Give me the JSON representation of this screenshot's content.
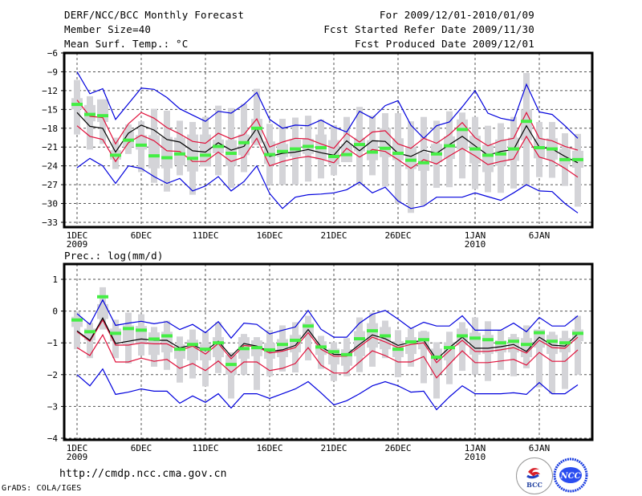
{
  "header": {
    "title": "DERF/NCC/BCC Monthly Forecast",
    "member_size": "Member Size=40",
    "variable": "Mean Surf. Temp.: °C",
    "period": "For 2009/12/01-2010/01/09",
    "started": "Fcst Started Refer Date 2009/11/30",
    "produced": "Fcst Produced Date 2009/12/01"
  },
  "footer": {
    "url": "http://cmdp.ncc.cma.gov.cn",
    "credit": "GrADS: COLA/IGES",
    "logos": [
      "BCC",
      "NCC"
    ]
  },
  "colors": {
    "mean": "#000000",
    "inner": "#e0103a",
    "outer": "#0000dd",
    "member_box": "#d4d4d8",
    "median_mark": "#44ee44"
  },
  "chart_data": [
    {
      "type": "line",
      "title": "Mean Surf. Temp.: °C",
      "ylabel": "°C",
      "ylim": [
        -34,
        -6
      ],
      "yticks": [
        -6,
        -9,
        -12,
        -15,
        -18,
        -21,
        -24,
        -27,
        -30,
        -33
      ],
      "xticks": [
        {
          "day": 1,
          "label": "1DEC",
          "sub": "2009"
        },
        {
          "day": 6,
          "label": "6DEC"
        },
        {
          "day": 11,
          "label": "11DEC"
        },
        {
          "day": 16,
          "label": "16DEC"
        },
        {
          "day": 21,
          "label": "21DEC"
        },
        {
          "day": 26,
          "label": "26DEC"
        },
        {
          "day": 32,
          "label": "1JAN",
          "sub": "2010"
        },
        {
          "day": 37,
          "label": "6JAN"
        }
      ],
      "grid": true,
      "days": 40,
      "series": [
        {
          "name": "ensemble-mean",
          "values": [
            -15.5,
            -17.7,
            -18.0,
            -21.8,
            -18.8,
            -17.5,
            -18.3,
            -19.8,
            -20.2,
            -21.6,
            -21.8,
            -20.3,
            -21.5,
            -20.9,
            -18.0,
            -22.5,
            -22.0,
            -21.8,
            -21.4,
            -21.9,
            -22.3,
            -20.0,
            -21.6,
            -20.0,
            -20.1,
            -22.0,
            -22.5,
            -21.5,
            -22.0,
            -20.6,
            -19.3,
            -20.8,
            -22.3,
            -21.7,
            -21.4,
            -17.6,
            -21.0,
            -21.3,
            -22.5,
            -23.5
          ]
        },
        {
          "name": "upper-inner",
          "values": [
            -13.5,
            -16.1,
            -16.3,
            -20.5,
            -17.3,
            -15.5,
            -16.4,
            -17.9,
            -18.9,
            -20.1,
            -20.4,
            -18.8,
            -19.7,
            -19.0,
            -16.5,
            -21.0,
            -20.2,
            -19.6,
            -19.7,
            -20.5,
            -21.2,
            -18.8,
            -20.2,
            -18.6,
            -18.4,
            -20.5,
            -21.2,
            -19.6,
            -20.4,
            -19.0,
            -17.1,
            -19.5,
            -20.8,
            -20.0,
            -19.6,
            -15.5,
            -19.6,
            -20.0,
            -20.9,
            -21.5
          ]
        },
        {
          "name": "lower-inner",
          "values": [
            -17.6,
            -19.3,
            -19.8,
            -23.3,
            -20.3,
            -19.1,
            -20.0,
            -21.6,
            -21.7,
            -23.3,
            -23.3,
            -21.8,
            -23.3,
            -22.6,
            -19.6,
            -24.0,
            -23.3,
            -22.8,
            -22.5,
            -22.9,
            -23.5,
            -21.2,
            -22.6,
            -21.4,
            -21.7,
            -23.0,
            -24.4,
            -23.0,
            -23.7,
            -22.4,
            -21.2,
            -22.4,
            -23.8,
            -23.3,
            -22.9,
            -19.3,
            -22.6,
            -23.2,
            -24.4,
            -25.8
          ]
        },
        {
          "name": "upper-outer",
          "values": [
            -9.0,
            -12.5,
            -11.7,
            -16.6,
            -14.1,
            -11.6,
            -11.8,
            -13.1,
            -14.9,
            -15.9,
            -16.9,
            -15.3,
            -15.6,
            -14.2,
            -12.3,
            -16.6,
            -18.0,
            -17.5,
            -17.6,
            -16.7,
            -17.8,
            -18.6,
            -15.3,
            -16.4,
            -14.4,
            -13.6,
            -17.5,
            -19.6,
            -17.6,
            -17.0,
            -14.6,
            -12.0,
            -15.6,
            -16.4,
            -16.8,
            -11.0,
            -15.4,
            -15.8,
            -17.6,
            -19.6
          ]
        },
        {
          "name": "lower-outer",
          "values": [
            -24.3,
            -22.8,
            -24.0,
            -26.8,
            -24.0,
            -24.4,
            -25.7,
            -26.8,
            -26.0,
            -28.0,
            -27.2,
            -25.7,
            -28.0,
            -26.5,
            -24.0,
            -28.4,
            -30.8,
            -29.0,
            -28.6,
            -28.5,
            -28.3,
            -27.8,
            -26.6,
            -28.3,
            -27.4,
            -29.6,
            -30.8,
            -30.4,
            -29.0,
            -29.0,
            -29.0,
            -28.3,
            -28.9,
            -29.5,
            -28.3,
            -27.0,
            -28.0,
            -28.1,
            -30.0,
            -31.5
          ]
        },
        {
          "name": "member-median",
          "values": [
            -14.2,
            -15.8,
            -16.0,
            -22.3,
            -19.9,
            -20.7,
            -22.4,
            -22.7,
            -22.1,
            -22.8,
            -22.3,
            -20.9,
            -22.0,
            -20.3,
            -18.0,
            -22.2,
            -21.7,
            -21.3,
            -20.9,
            -21.1,
            -22.5,
            -22.2,
            -20.6,
            -21.8,
            -21.2,
            -22.0,
            -23.1,
            -23.5,
            -22.1,
            -20.8,
            -18.2,
            -21.3,
            -22.3,
            -22.1,
            -21.3,
            -16.9,
            -21.1,
            -21.3,
            -23.0,
            -23.0
          ]
        },
        {
          "name": "box-top",
          "values": [
            -10.3,
            -12.9,
            -13.4,
            -19.5,
            -17.4,
            -16.9,
            -14.9,
            -15.2,
            -16.8,
            -17.0,
            -16.2,
            -14.4,
            -14.8,
            -14.1,
            -11.7,
            -17.3,
            -16.5,
            -16.3,
            -16.0,
            -16.6,
            -17.5,
            -16.2,
            -14.6,
            -16.0,
            -15.6,
            -15.6,
            -16.9,
            -16.2,
            -16.8,
            -15.3,
            -15.5,
            -16.2,
            -17.6,
            -17.2,
            -16.2,
            -9.2,
            -17.0,
            -17.0,
            -18.8,
            -18.9
          ]
        },
        {
          "name": "box-bottom",
          "values": [
            -19.0,
            -21.4,
            -20.5,
            -24.5,
            -22.1,
            -25.0,
            -26.7,
            -28.1,
            -25.5,
            -28.6,
            -24.0,
            -25.5,
            -27.5,
            -25.0,
            -20.7,
            -27.0,
            -27.0,
            -27.0,
            -26.5,
            -26.0,
            -25.5,
            -22.7,
            -27.0,
            -25.5,
            -27.3,
            -30.0,
            -31.5,
            -30.3,
            -27.5,
            -27.4,
            -26.0,
            -27.7,
            -28.2,
            -28.3,
            -27.6,
            -27.2,
            -25.8,
            -25.9,
            -27.2,
            -30.5
          ]
        },
        {
          "name": "box-q3",
          "values": [
            -13.2,
            -14.3,
            -13.4,
            -21.5,
            -18.5,
            -19.1,
            -19.1,
            -19.4,
            -19.5,
            -19.0,
            -19.0,
            -19.8,
            -19.9,
            -19.0,
            -16.5,
            -20.1,
            -20.5,
            -19.8,
            -19.7,
            -19.0,
            -19.9,
            -20.5,
            -19.5,
            -19.9,
            -18.0,
            -19.6,
            -21.0,
            -22.0,
            -20.5,
            -19.3,
            -16.6,
            -19.2,
            -20.7,
            -19.8,
            -19.5,
            -15.0,
            -19.7,
            -19.6,
            -21.3,
            -21.6
          ]
        },
        {
          "name": "box-q1",
          "values": [
            -15.0,
            -16.9,
            -17.0,
            -23.0,
            -21.0,
            -21.4,
            -24.4,
            -24.4,
            -23.9,
            -24.9,
            -24.1,
            -22.0,
            -24.0,
            -22.3,
            -20.4,
            -23.7,
            -22.6,
            -22.5,
            -22.1,
            -23.0,
            -23.8,
            -23.4,
            -21.7,
            -23.1,
            -22.6,
            -23.1,
            -24.5,
            -24.8,
            -23.4,
            -22.9,
            -21.4,
            -23.6,
            -25.0,
            -24.0,
            -23.2,
            -19.9,
            -22.8,
            -23.0,
            -23.8,
            -24.3
          ]
        }
      ]
    },
    {
      "type": "line",
      "title": "Prec.: log(mm/d)",
      "ylabel": "log(mm/d)",
      "ylim": [
        -4,
        1.5
      ],
      "yticks": [
        1,
        0,
        -1,
        -2,
        -3,
        -4
      ],
      "xticks": [
        {
          "day": 1,
          "label": "1DEC",
          "sub": "2009"
        },
        {
          "day": 6,
          "label": "6DEC"
        },
        {
          "day": 11,
          "label": "11DEC"
        },
        {
          "day": 16,
          "label": "16DEC"
        },
        {
          "day": 21,
          "label": "21DEC"
        },
        {
          "day": 26,
          "label": "26DEC"
        },
        {
          "day": 32,
          "label": "1JAN",
          "sub": "2010"
        },
        {
          "day": 37,
          "label": "6JAN"
        }
      ],
      "grid": true,
      "days": 40,
      "series": [
        {
          "name": "ensemble-mean",
          "values": [
            -0.62,
            -0.92,
            -0.22,
            -1.02,
            -0.95,
            -0.88,
            -0.92,
            -0.92,
            -1.16,
            -1.06,
            -1.25,
            -0.95,
            -1.42,
            -1.02,
            -1.1,
            -1.27,
            -1.22,
            -1.08,
            -0.58,
            -1.12,
            -1.36,
            -1.37,
            -1.05,
            -0.75,
            -0.87,
            -1.08,
            -0.98,
            -0.92,
            -1.52,
            -1.15,
            -0.82,
            -1.17,
            -1.17,
            -1.12,
            -1.05,
            -1.27,
            -0.82,
            -1.07,
            -1.1,
            -0.72
          ]
        },
        {
          "name": "upper-inner",
          "values": [
            -0.65,
            -0.95,
            -0.28,
            -1.07,
            -1.07,
            -1.0,
            -1.03,
            -1.03,
            -1.24,
            -1.1,
            -1.35,
            -1.02,
            -1.5,
            -1.08,
            -1.12,
            -1.32,
            -1.26,
            -1.15,
            -0.68,
            -1.2,
            -1.42,
            -1.42,
            -1.12,
            -0.82,
            -0.97,
            -1.15,
            -1.05,
            -1.0,
            -1.62,
            -1.25,
            -0.92,
            -1.27,
            -1.27,
            -1.22,
            -1.15,
            -1.32,
            -0.92,
            -1.15,
            -1.17,
            -0.82
          ]
        },
        {
          "name": "lower-inner",
          "values": [
            -1.15,
            -1.4,
            -0.75,
            -1.6,
            -1.6,
            -1.48,
            -1.58,
            -1.52,
            -1.8,
            -1.65,
            -1.87,
            -1.57,
            -1.93,
            -1.6,
            -1.6,
            -1.87,
            -1.8,
            -1.65,
            -1.15,
            -1.7,
            -1.95,
            -1.95,
            -1.6,
            -1.25,
            -1.4,
            -1.6,
            -1.6,
            -1.43,
            -2.1,
            -1.67,
            -1.25,
            -1.62,
            -1.62,
            -1.57,
            -1.52,
            -1.7,
            -1.3,
            -1.58,
            -1.58,
            -1.22
          ]
        },
        {
          "name": "upper-outer",
          "values": [
            -0.08,
            -0.42,
            0.35,
            -0.45,
            -0.38,
            -0.32,
            -0.4,
            -0.33,
            -0.58,
            -0.42,
            -0.68,
            -0.33,
            -0.85,
            -0.38,
            -0.42,
            -0.72,
            -0.6,
            -0.5,
            0.02,
            -0.57,
            -0.82,
            -0.82,
            -0.38,
            -0.1,
            0.02,
            -0.25,
            -0.55,
            -0.35,
            -0.47,
            -0.47,
            -0.15,
            -0.6,
            -0.6,
            -0.6,
            -0.38,
            -0.65,
            -0.2,
            -0.47,
            -0.47,
            -0.15
          ]
        },
        {
          "name": "lower-outer",
          "values": [
            -2.0,
            -2.35,
            -1.82,
            -2.62,
            -2.55,
            -2.45,
            -2.52,
            -2.52,
            -2.9,
            -2.67,
            -2.87,
            -2.6,
            -3.05,
            -2.6,
            -2.6,
            -2.75,
            -2.6,
            -2.45,
            -2.22,
            -2.57,
            -2.95,
            -2.82,
            -2.6,
            -2.35,
            -2.22,
            -2.35,
            -2.55,
            -2.52,
            -3.1,
            -2.7,
            -2.35,
            -2.6,
            -2.6,
            -2.6,
            -2.57,
            -2.62,
            -2.25,
            -2.6,
            -2.6,
            -2.32
          ]
        },
        {
          "name": "member-median",
          "values": [
            -0.28,
            -0.65,
            0.45,
            -0.7,
            -0.55,
            -0.6,
            -0.88,
            -0.78,
            -1.2,
            -1.05,
            -1.2,
            -1.0,
            -1.68,
            -1.18,
            -1.15,
            -1.22,
            -1.05,
            -0.92,
            -0.47,
            -1.13,
            -1.28,
            -1.37,
            -0.87,
            -0.62,
            -0.78,
            -1.2,
            -0.97,
            -0.9,
            -1.45,
            -1.15,
            -0.78,
            -0.85,
            -0.9,
            -1.0,
            -0.95,
            -1.05,
            -0.68,
            -0.95,
            -1.0,
            -0.7
          ]
        },
        {
          "name": "box-top",
          "values": [
            -0.02,
            -0.37,
            0.75,
            -0.27,
            -0.05,
            -0.1,
            -0.5,
            -0.3,
            -0.8,
            -0.58,
            -0.65,
            -0.35,
            -1.3,
            -0.72,
            -0.82,
            -0.6,
            -0.45,
            -0.35,
            -0.15,
            -0.78,
            -0.98,
            -0.85,
            -0.2,
            -0.05,
            -0.3,
            -0.6,
            -0.55,
            -0.62,
            -0.98,
            -0.65,
            -0.35,
            -0.2,
            -0.32,
            -0.6,
            -0.72,
            -0.45,
            -0.62,
            -0.65,
            -0.62,
            -0.15
          ]
        },
        {
          "name": "box-bottom",
          "values": [
            -1.2,
            -1.48,
            -0.58,
            -1.48,
            -1.65,
            -1.4,
            -1.75,
            -1.85,
            -2.25,
            -2.12,
            -2.37,
            -1.95,
            -2.75,
            -2.0,
            -2.48,
            -2.05,
            -1.9,
            -1.93,
            -1.55,
            -1.82,
            -2.2,
            -2.05,
            -1.92,
            -1.75,
            -1.48,
            -2.08,
            -1.75,
            -2.27,
            -2.75,
            -2.3,
            -1.88,
            -2.0,
            -2.2,
            -1.85,
            -2.05,
            -1.8,
            -2.4,
            -2.6,
            -2.45,
            -2.0
          ]
        },
        {
          "name": "box-q3",
          "values": [
            -0.18,
            -0.55,
            0.22,
            -0.55,
            -0.45,
            -0.47,
            -0.67,
            -0.65,
            -1.05,
            -0.9,
            -1.03,
            -0.82,
            -1.38,
            -0.82,
            -0.92,
            -1.0,
            -0.88,
            -0.75,
            -0.37,
            -0.95,
            -1.18,
            -1.2,
            -0.63,
            -0.38,
            -0.5,
            -0.95,
            -0.82,
            -0.65,
            -1.18,
            -0.98,
            -0.55,
            -0.68,
            -0.75,
            -0.92,
            -0.82,
            -0.85,
            -0.58,
            -0.75,
            -0.85,
            -0.58
          ]
        },
        {
          "name": "box-q1",
          "values": [
            -0.5,
            -0.92,
            -0.25,
            -0.95,
            -1.05,
            -1.05,
            -1.38,
            -1.3,
            -1.5,
            -1.55,
            -1.55,
            -1.45,
            -2.0,
            -1.5,
            -1.42,
            -1.5,
            -1.45,
            -1.3,
            -0.85,
            -1.38,
            -1.68,
            -1.72,
            -1.42,
            -1.15,
            -1.2,
            -1.45,
            -1.35,
            -1.2,
            -1.98,
            -1.55,
            -1.08,
            -1.37,
            -1.35,
            -1.3,
            -1.3,
            -1.45,
            -1.15,
            -1.35,
            -1.3,
            -0.95
          ]
        }
      ]
    }
  ]
}
